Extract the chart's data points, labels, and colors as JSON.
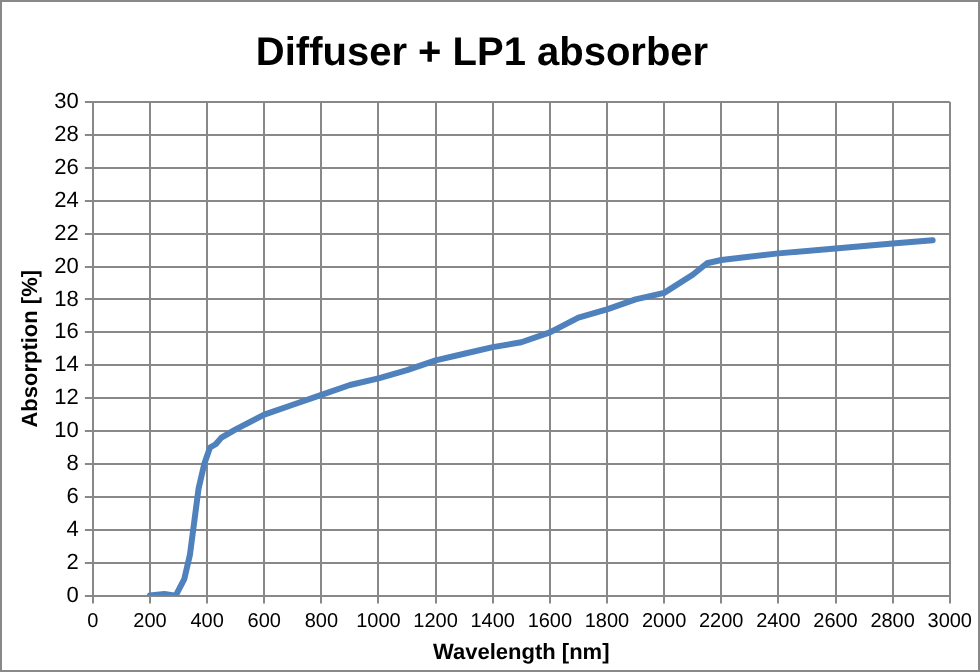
{
  "chart_data": {
    "type": "line",
    "title": "Diffuser + LP1 absorber",
    "xlabel": "Wavelength [nm]",
    "ylabel": "Absorption [%]",
    "x": [
      200,
      250,
      290,
      320,
      340,
      355,
      370,
      390,
      410,
      430,
      450,
      500,
      600,
      700,
      800,
      900,
      1000,
      1100,
      1200,
      1300,
      1400,
      1500,
      1600,
      1700,
      1800,
      1900,
      2000,
      2100,
      2150,
      2200,
      2400,
      2600,
      2800,
      2940
    ],
    "series": [
      {
        "color": "#4f81bd",
        "values": [
          0,
          0.1,
          0,
          1,
          2.5,
          4.5,
          6.5,
          8,
          9,
          9.2,
          9.6,
          10.1,
          11,
          11.6,
          12.2,
          12.8,
          13.2,
          13.7,
          14.3,
          14.7,
          15.1,
          15.4,
          16,
          16.9,
          17.4,
          18,
          18.4,
          19.5,
          20.2,
          20.4,
          20.8,
          21.1,
          21.4,
          21.6
        ]
      }
    ],
    "xlim": [
      0,
      3000
    ],
    "xticks": [
      0,
      200,
      400,
      600,
      800,
      1000,
      1200,
      1400,
      1600,
      1800,
      2000,
      2200,
      2400,
      2600,
      2800,
      3000
    ],
    "ylim": [
      0,
      30
    ],
    "yticks": [
      0,
      2,
      4,
      6,
      8,
      10,
      12,
      14,
      16,
      18,
      20,
      22,
      24,
      26,
      28,
      30
    ],
    "grid": true,
    "legend": false,
    "marker": "none",
    "line_style": "solid"
  }
}
